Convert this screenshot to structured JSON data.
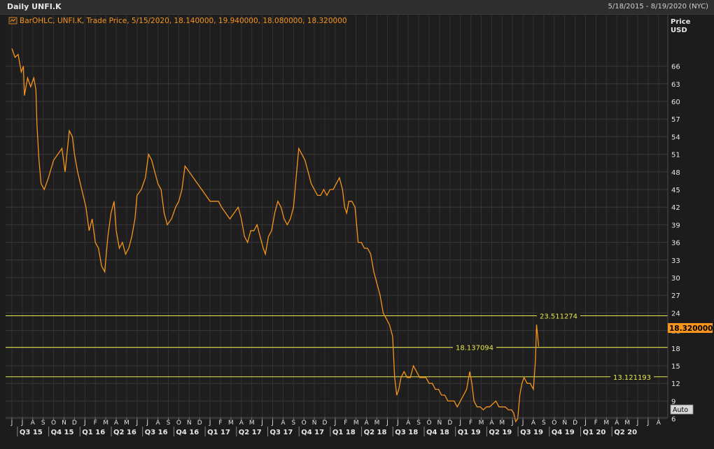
{
  "header": {
    "title": "Daily UNFI.K",
    "date_range": "5/18/2015 - 8/19/2020 (NYC)"
  },
  "legend_text": "BarOHLC, UNFI.K, Trade Price, 5/15/2020, 18.140000, 19.940000, 18.080000, 18.320000",
  "axis": {
    "ylabel_line1": "Price",
    "ylabel_line2": "USD",
    "auto_button": "Auto"
  },
  "current_price": "18.320000",
  "chart_data": {
    "type": "line",
    "ylim": [
      5,
      69
    ],
    "yticks": [
      6,
      9,
      12,
      15,
      18,
      21,
      24,
      27,
      30,
      33,
      36,
      39,
      42,
      45,
      48,
      51,
      54,
      57,
      60,
      63,
      66
    ],
    "ytick_labels": [
      "6",
      "9",
      "12",
      "15",
      "18",
      "21",
      "24",
      "27",
      "30",
      "33",
      "36",
      "39",
      "42",
      "45",
      "48",
      "51",
      "54",
      "57",
      "60",
      "63",
      "66"
    ],
    "month_labels": [
      "J",
      "J",
      "A",
      "S",
      "O",
      "N",
      "D",
      "J",
      "F",
      "M",
      "A",
      "M",
      "J",
      "J",
      "A",
      "S",
      "O",
      "N",
      "D",
      "J",
      "F",
      "M",
      "A",
      "M",
      "J",
      "J",
      "A",
      "S",
      "O",
      "N",
      "D",
      "J",
      "F",
      "M",
      "A",
      "M",
      "J",
      "J",
      "A",
      "S",
      "O",
      "N",
      "D",
      "J",
      "F",
      "M",
      "A",
      "M",
      "J",
      "J",
      "A",
      "S",
      "O",
      "N",
      "D",
      "J",
      "F",
      "M",
      "A",
      "M",
      "J",
      "J",
      "A"
    ],
    "quarter_labels": [
      "Q3 15",
      "Q4 15",
      "Q1 16",
      "Q2 16",
      "Q3 16",
      "Q4 16",
      "Q1 17",
      "Q2 17",
      "Q3 17",
      "Q4 17",
      "Q1 18",
      "Q2 18",
      "Q3 18",
      "Q4 18",
      "Q1 19",
      "Q2 19",
      "Q3 19",
      "Q4 19",
      "Q1 20",
      "Q2 20"
    ],
    "quarter_month_index": [
      1,
      4,
      7,
      10,
      13,
      16,
      19,
      22,
      25,
      28,
      31,
      34,
      37,
      40,
      43,
      46,
      49,
      52,
      55,
      58
    ],
    "grid": true,
    "series": [
      {
        "color": "#f7941d",
        "points": [
          [
            0,
            69
          ],
          [
            0.3,
            67.5
          ],
          [
            0.6,
            68
          ],
          [
            0.9,
            65
          ],
          [
            1.1,
            66
          ],
          [
            1.2,
            61
          ],
          [
            1.5,
            64
          ],
          [
            1.8,
            62.5
          ],
          [
            2.1,
            64
          ],
          [
            2.3,
            62
          ],
          [
            2.4,
            56
          ],
          [
            2.6,
            50
          ],
          [
            2.8,
            46
          ],
          [
            3.1,
            45
          ],
          [
            3.5,
            47
          ],
          [
            4.0,
            50
          ],
          [
            4.4,
            51
          ],
          [
            4.8,
            52
          ],
          [
            5.1,
            48
          ],
          [
            5.5,
            55
          ],
          [
            5.8,
            54
          ],
          [
            6.0,
            51
          ],
          [
            6.3,
            48
          ],
          [
            6.7,
            45
          ],
          [
            7.1,
            42
          ],
          [
            7.4,
            38
          ],
          [
            7.7,
            40
          ],
          [
            8.0,
            36
          ],
          [
            8.3,
            35
          ],
          [
            8.6,
            32
          ],
          [
            8.9,
            31
          ],
          [
            9.2,
            37
          ],
          [
            9.5,
            41
          ],
          [
            9.8,
            43
          ],
          [
            10.0,
            38
          ],
          [
            10.3,
            35
          ],
          [
            10.6,
            36
          ],
          [
            10.9,
            34
          ],
          [
            11.2,
            35
          ],
          [
            11.5,
            37
          ],
          [
            11.8,
            40
          ],
          [
            12.0,
            44
          ],
          [
            12.4,
            45
          ],
          [
            12.8,
            47
          ],
          [
            13.1,
            51
          ],
          [
            13.4,
            50
          ],
          [
            13.7,
            48
          ],
          [
            14.0,
            46
          ],
          [
            14.3,
            45
          ],
          [
            14.6,
            41
          ],
          [
            14.9,
            39
          ],
          [
            15.3,
            40
          ],
          [
            15.7,
            42
          ],
          [
            16.0,
            43
          ],
          [
            16.3,
            45
          ],
          [
            16.6,
            49
          ],
          [
            17.0,
            48
          ],
          [
            17.4,
            47
          ],
          [
            17.8,
            46
          ],
          [
            18.2,
            45
          ],
          [
            18.6,
            44
          ],
          [
            19.0,
            43
          ],
          [
            19.4,
            43
          ],
          [
            19.8,
            43
          ],
          [
            20.1,
            42
          ],
          [
            20.5,
            41
          ],
          [
            20.9,
            40
          ],
          [
            21.3,
            41
          ],
          [
            21.7,
            42
          ],
          [
            22.0,
            40
          ],
          [
            22.3,
            37
          ],
          [
            22.6,
            36
          ],
          [
            22.9,
            38
          ],
          [
            23.2,
            38
          ],
          [
            23.5,
            39
          ],
          [
            23.8,
            37
          ],
          [
            24.1,
            35
          ],
          [
            24.3,
            34
          ],
          [
            24.6,
            37
          ],
          [
            24.9,
            38
          ],
          [
            25.2,
            41
          ],
          [
            25.5,
            43
          ],
          [
            25.8,
            42
          ],
          [
            26.1,
            40
          ],
          [
            26.4,
            39
          ],
          [
            26.7,
            40
          ],
          [
            27.0,
            42
          ],
          [
            27.2,
            46
          ],
          [
            27.5,
            52
          ],
          [
            27.8,
            51
          ],
          [
            28.1,
            50
          ],
          [
            28.4,
            48
          ],
          [
            28.7,
            46
          ],
          [
            29.0,
            45
          ],
          [
            29.3,
            44
          ],
          [
            29.6,
            44
          ],
          [
            29.9,
            45
          ],
          [
            30.2,
            44
          ],
          [
            30.5,
            45
          ],
          [
            30.8,
            45
          ],
          [
            31.1,
            46
          ],
          [
            31.4,
            47
          ],
          [
            31.7,
            45
          ],
          [
            31.9,
            42
          ],
          [
            32.1,
            41
          ],
          [
            32.3,
            43
          ],
          [
            32.6,
            43
          ],
          [
            32.9,
            42
          ],
          [
            33.2,
            36
          ],
          [
            33.5,
            36
          ],
          [
            33.8,
            35
          ],
          [
            34.1,
            35
          ],
          [
            34.4,
            34
          ],
          [
            34.7,
            31
          ],
          [
            35.0,
            29
          ],
          [
            35.3,
            27
          ],
          [
            35.6,
            24
          ],
          [
            35.9,
            23
          ],
          [
            36.2,
            22
          ],
          [
            36.5,
            20
          ],
          [
            36.7,
            13
          ],
          [
            36.9,
            10
          ],
          [
            37.1,
            11
          ],
          [
            37.3,
            13
          ],
          [
            37.6,
            14
          ],
          [
            37.9,
            13
          ],
          [
            38.2,
            13
          ],
          [
            38.5,
            15
          ],
          [
            38.8,
            14
          ],
          [
            39.1,
            13
          ],
          [
            39.4,
            13
          ],
          [
            39.7,
            13
          ],
          [
            40.0,
            12
          ],
          [
            40.3,
            12
          ],
          [
            40.6,
            11
          ],
          [
            40.9,
            11
          ],
          [
            41.2,
            10
          ],
          [
            41.5,
            10
          ],
          [
            41.8,
            9
          ],
          [
            42.1,
            9
          ],
          [
            42.4,
            9
          ],
          [
            42.7,
            8
          ],
          [
            43.0,
            9
          ],
          [
            43.3,
            10
          ],
          [
            43.6,
            11
          ],
          [
            43.9,
            14
          ],
          [
            44.1,
            12
          ],
          [
            44.3,
            9
          ],
          [
            44.6,
            8
          ],
          [
            44.9,
            8
          ],
          [
            45.2,
            7.5
          ],
          [
            45.5,
            8
          ],
          [
            45.8,
            8
          ],
          [
            46.1,
            8.5
          ],
          [
            46.4,
            9
          ],
          [
            46.7,
            8
          ],
          [
            47.0,
            8
          ],
          [
            47.3,
            8
          ],
          [
            47.6,
            7.5
          ],
          [
            47.9,
            7.5
          ],
          [
            48.1,
            7
          ],
          [
            48.3,
            5.5
          ],
          [
            48.5,
            6
          ],
          [
            48.7,
            10
          ],
          [
            48.9,
            12
          ],
          [
            49.1,
            13
          ],
          [
            49.4,
            12
          ],
          [
            49.7,
            12
          ],
          [
            50.0,
            11
          ],
          [
            50.2,
            16
          ],
          [
            50.3,
            22
          ],
          [
            50.5,
            18.3
          ]
        ]
      }
    ],
    "hlines": [
      {
        "value": 23.511274,
        "label": "23.511274"
      },
      {
        "value": 18.137094,
        "label": "18.137094"
      },
      {
        "value": 13.121193,
        "label": "13.121193"
      }
    ]
  }
}
